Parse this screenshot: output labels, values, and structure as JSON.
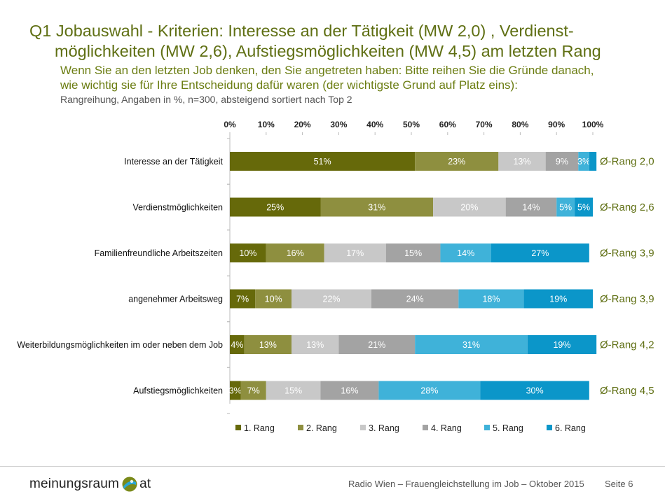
{
  "title": {
    "line1": "Q1 Jobauswahl - Kriterien: Interesse an der Tätigkeit (MW 2,0) , Verdienst-",
    "line2": "möglichkeiten (MW 2,6), Aufstiegsmöglichkeiten (MW 4,5) am letzten Rang"
  },
  "question": {
    "line1": "Wenn Sie an den letzten Job denken, den Sie angetreten haben: Bitte reihen Sie die Gründe danach,",
    "line2": "wie wichtig sie für Ihre Entscheidung dafür waren (der wichtigste Grund auf Platz eins):"
  },
  "note": "Rangreihung, Angaben in %, n=300, absteigend sortiert nach Top 2",
  "chart_data": {
    "type": "bar",
    "orientation": "horizontal",
    "stacked": true,
    "xlim": [
      0,
      100
    ],
    "x_ticks": [
      "0%",
      "10%",
      "20%",
      "30%",
      "40%",
      "50%",
      "60%",
      "70%",
      "80%",
      "90%",
      "100%"
    ],
    "categories": [
      "Interesse an der Tätigkeit",
      "Verdienstmöglichkeiten",
      "Familienfreundliche Arbeitszeiten",
      "angenehmer Arbeitsweg",
      "Weiterbildungsmöglichkeiten im oder neben dem Job",
      "Aufstiegsmöglichkeiten"
    ],
    "series": [
      {
        "name": "1. Rang",
        "color": "#66690a",
        "label_color": "#ffffff",
        "values": [
          51,
          25,
          10,
          7,
          4,
          3
        ]
      },
      {
        "name": "2. Rang",
        "color": "#8e8f3f",
        "label_color": "#ffffff",
        "values": [
          23,
          31,
          16,
          10,
          13,
          7
        ]
      },
      {
        "name": "3. Rang",
        "color": "#c8c8c8",
        "label_color": "#ffffff",
        "values": [
          13,
          20,
          17,
          22,
          13,
          15
        ]
      },
      {
        "name": "4. Rang",
        "color": "#a3a3a3",
        "label_color": "#ffffff",
        "values": [
          9,
          14,
          15,
          24,
          21,
          16
        ]
      },
      {
        "name": "5. Rang",
        "color": "#3fb2d9",
        "label_color": "#ffffff",
        "values": [
          3,
          5,
          14,
          18,
          31,
          28
        ]
      },
      {
        "name": "6. Rang",
        "color": "#0b96c9",
        "label_color": "#ffffff",
        "values": [
          2,
          5,
          27,
          19,
          19,
          30
        ]
      }
    ],
    "segment_labels": [
      [
        "51%",
        "23%",
        "13%",
        "9%",
        "3%",
        ""
      ],
      [
        "25%",
        "31%",
        "20%",
        "14%",
        "5%",
        "5%"
      ],
      [
        "10%",
        "16%",
        "17%",
        "15%",
        "14%",
        "27%"
      ],
      [
        "7%",
        "10%",
        "22%",
        "24%",
        "18%",
        "19%"
      ],
      [
        "4%",
        "13%",
        "13%",
        "21%",
        "31%",
        "19%"
      ],
      [
        "3%",
        "7%",
        "15%",
        "16%",
        "28%",
        "30%"
      ]
    ],
    "row_annotations": [
      "Ø-Rang 2,0",
      "Ø-Rang 2,6",
      "Ø-Rang 3,9",
      "Ø-Rang  3,9",
      "Ø-Rang  4,2",
      "Ø-Rang  4,5"
    ],
    "annotation_color": "#5f6f13",
    "legend_position": "bottom",
    "grid": true
  },
  "footer": {
    "logo_left": "meinungsraum",
    "logo_right": "at",
    "source": "Radio Wien – Frauengleichstellung im Job – Oktober 2015",
    "page": "Seite 6"
  }
}
